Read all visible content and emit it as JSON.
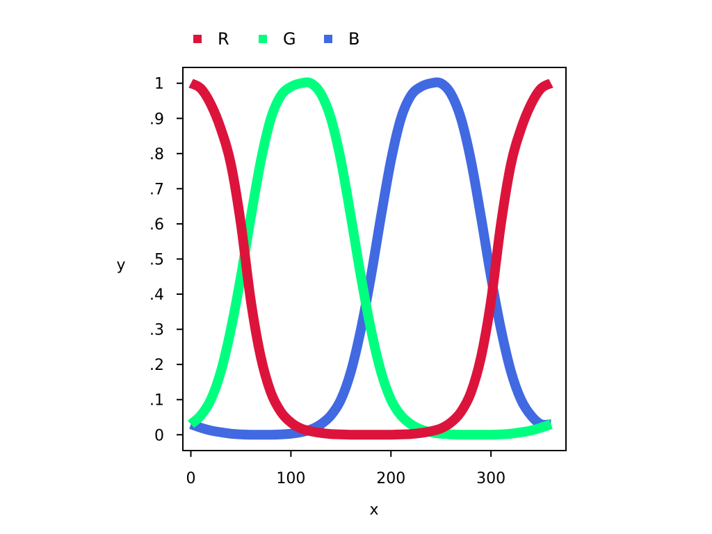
{
  "chart_data": {
    "type": "line",
    "title": "",
    "xlabel": "x",
    "ylabel": "y",
    "xlim": [
      -8,
      375
    ],
    "ylim": [
      -0.045,
      1.045
    ],
    "x_ticks": [
      0,
      100,
      200,
      300
    ],
    "x_tick_labels": [
      "0",
      "100",
      "200",
      "300"
    ],
    "y_ticks": [
      0,
      0.1,
      0.2,
      0.3,
      0.4,
      0.5,
      0.6,
      0.7,
      0.8,
      0.9,
      1
    ],
    "y_tick_labels": [
      "0",
      ".1",
      ".2",
      ".3",
      ".4",
      ".5",
      ".6",
      ".7",
      ".8",
      ".9",
      "1"
    ],
    "grid": false,
    "legend_position": "top-left",
    "x": [
      0,
      10,
      20,
      30,
      40,
      50,
      60,
      70,
      80,
      90,
      100,
      110,
      120,
      130,
      140,
      150,
      160,
      170,
      180,
      190,
      200,
      210,
      220,
      230,
      240,
      250,
      260,
      270,
      280,
      290,
      300,
      310,
      320,
      330,
      340,
      350,
      360
    ],
    "series": [
      {
        "name": "R",
        "color": "#DC143C",
        "values": [
          1.0,
          0.985,
          0.94,
          0.87,
          0.77,
          0.6,
          0.38,
          0.22,
          0.12,
          0.065,
          0.035,
          0.018,
          0.01,
          0.005,
          0.002,
          0.001,
          0.0,
          0.0,
          0.0,
          0.0,
          0.0,
          0.001,
          0.002,
          0.005,
          0.01,
          0.018,
          0.035,
          0.065,
          0.12,
          0.22,
          0.38,
          0.6,
          0.77,
          0.87,
          0.94,
          0.985,
          1.0
        ]
      },
      {
        "name": "G",
        "color": "#00FF7F",
        "values": [
          0.03,
          0.055,
          0.1,
          0.18,
          0.3,
          0.45,
          0.62,
          0.78,
          0.9,
          0.965,
          0.99,
          1.0,
          1.0,
          0.97,
          0.9,
          0.78,
          0.62,
          0.45,
          0.3,
          0.18,
          0.1,
          0.055,
          0.03,
          0.015,
          0.007,
          0.003,
          0.001,
          0.0,
          0.0,
          0.0,
          0.0,
          0.001,
          0.003,
          0.007,
          0.012,
          0.02,
          0.03
        ]
      },
      {
        "name": "B",
        "color": "#4169E1",
        "values": [
          0.03,
          0.02,
          0.012,
          0.007,
          0.003,
          0.001,
          0.0,
          0.0,
          0.0,
          0.001,
          0.003,
          0.007,
          0.015,
          0.03,
          0.055,
          0.1,
          0.18,
          0.3,
          0.45,
          0.62,
          0.78,
          0.9,
          0.965,
          0.99,
          1.0,
          1.0,
          0.97,
          0.9,
          0.78,
          0.62,
          0.45,
          0.3,
          0.18,
          0.1,
          0.055,
          0.03,
          0.03
        ]
      }
    ]
  }
}
